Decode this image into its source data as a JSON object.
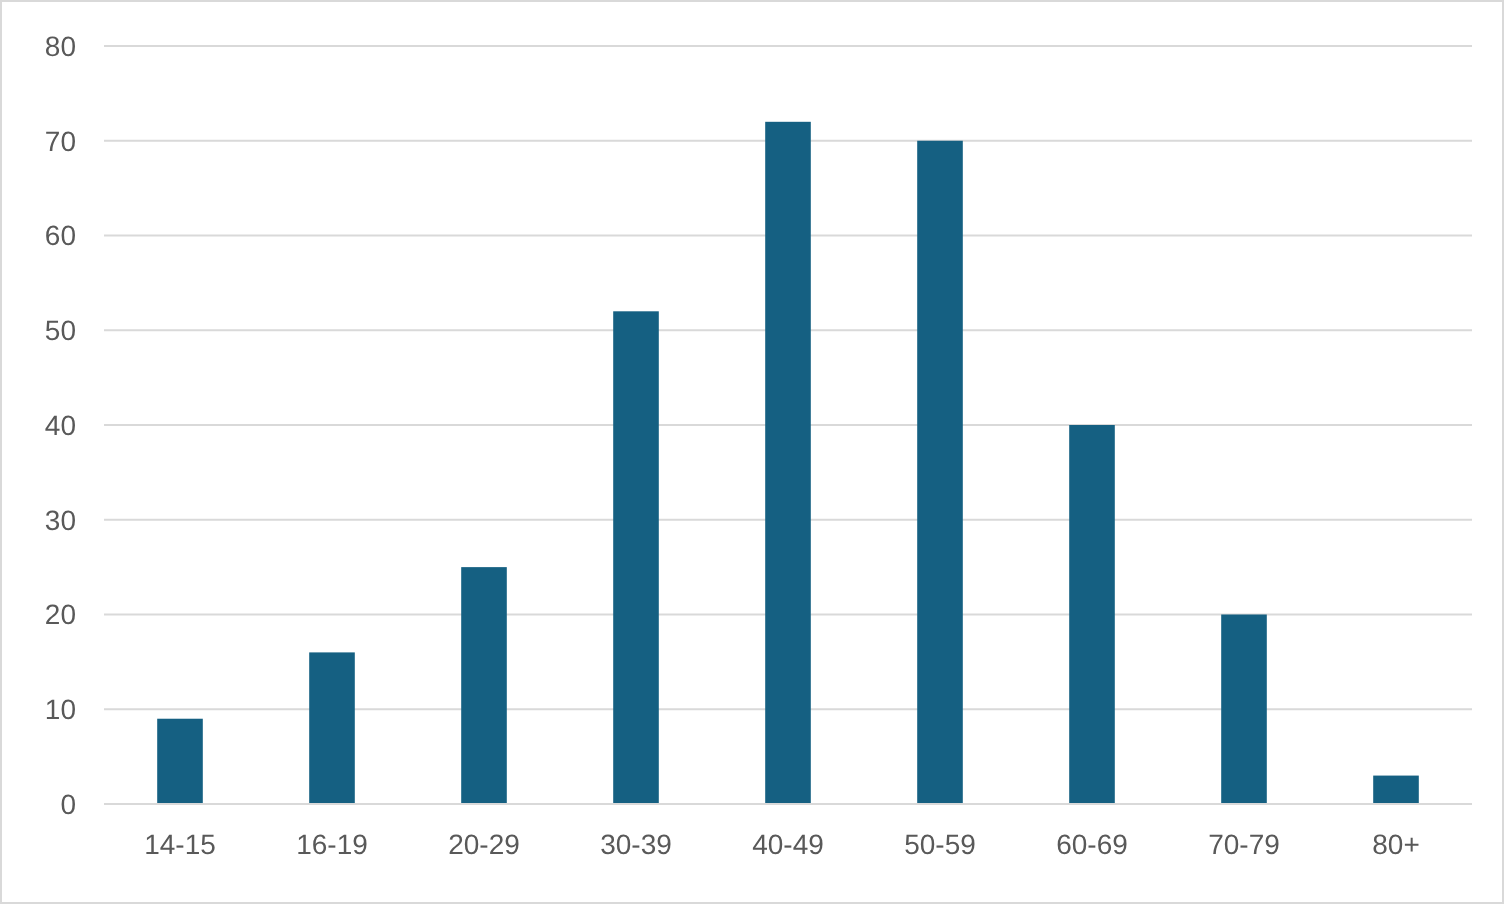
{
  "chart_data": {
    "type": "bar",
    "categories": [
      "14-15",
      "16-19",
      "20-29",
      "30-39",
      "40-49",
      "50-59",
      "60-69",
      "70-79",
      "80+"
    ],
    "values": [
      9,
      16,
      25,
      52,
      72,
      70,
      40,
      20,
      3
    ],
    "color": "#156082",
    "ylim": [
      0,
      80
    ],
    "yticks": [
      0,
      10,
      20,
      30,
      40,
      50,
      60,
      70,
      80
    ],
    "grid": "y"
  }
}
